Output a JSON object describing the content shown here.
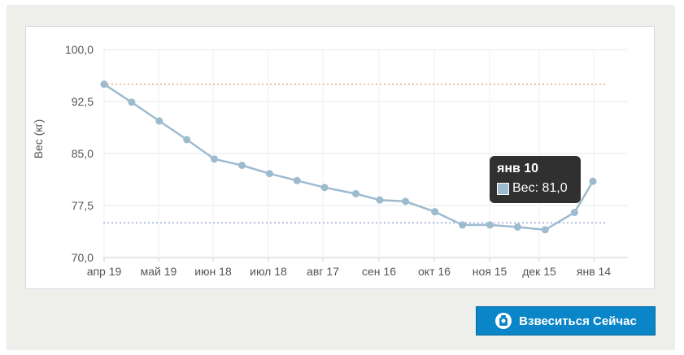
{
  "chart_data": {
    "type": "line",
    "ylabel": "Вес (кг)",
    "xlabel": "",
    "ylim": [
      70,
      100
    ],
    "yticks": [
      "100,0",
      "92,5",
      "85,0",
      "77,5",
      "70,0"
    ],
    "yticks_values": [
      100,
      92.5,
      85,
      77.5,
      70
    ],
    "xticks": [
      "апр 19",
      "май 19",
      "июн 18",
      "июл 18",
      "авг 17",
      "сен 16",
      "окт 16",
      "ноя 15",
      "дек 15",
      "янв 14"
    ],
    "grid": true,
    "reference_lines": [
      {
        "value": 95,
        "color": "#e8856a"
      },
      {
        "value": 75,
        "color": "#7a8fd0"
      }
    ],
    "series": [
      {
        "color": "#9dbbcf",
        "points": [
          {
            "x": "2015-04-19",
            "y": 95.0
          },
          {
            "x": "2015-05-04",
            "y": 92.4
          },
          {
            "x": "2015-05-19",
            "y": 89.7
          },
          {
            "x": "2015-06-03",
            "y": 87.0
          },
          {
            "x": "2015-06-18",
            "y": 84.2
          },
          {
            "x": "2015-07-03",
            "y": 83.3
          },
          {
            "x": "2015-07-18",
            "y": 82.1
          },
          {
            "x": "2015-08-02",
            "y": 81.1
          },
          {
            "x": "2015-08-17",
            "y": 80.1
          },
          {
            "x": "2015-09-03",
            "y": 79.2
          },
          {
            "x": "2015-09-16",
            "y": 78.3
          },
          {
            "x": "2015-09-30",
            "y": 78.1
          },
          {
            "x": "2015-10-16",
            "y": 76.6
          },
          {
            "x": "2015-10-31",
            "y": 74.7
          },
          {
            "x": "2015-11-15",
            "y": 74.7
          },
          {
            "x": "2015-11-30",
            "y": 74.4
          },
          {
            "x": "2015-12-15",
            "y": 74.0
          },
          {
            "x": "2015-12-31",
            "y": 76.5
          },
          {
            "x": "2016-01-10",
            "y": 81.0
          }
        ]
      }
    ]
  },
  "tooltip": {
    "title": "янв 10",
    "label": "Вес: 81,0"
  },
  "button": {
    "label": "Взвеситься Сейчас"
  },
  "colors": {
    "line": "#9dbbcf",
    "button": "#0a85c7"
  }
}
